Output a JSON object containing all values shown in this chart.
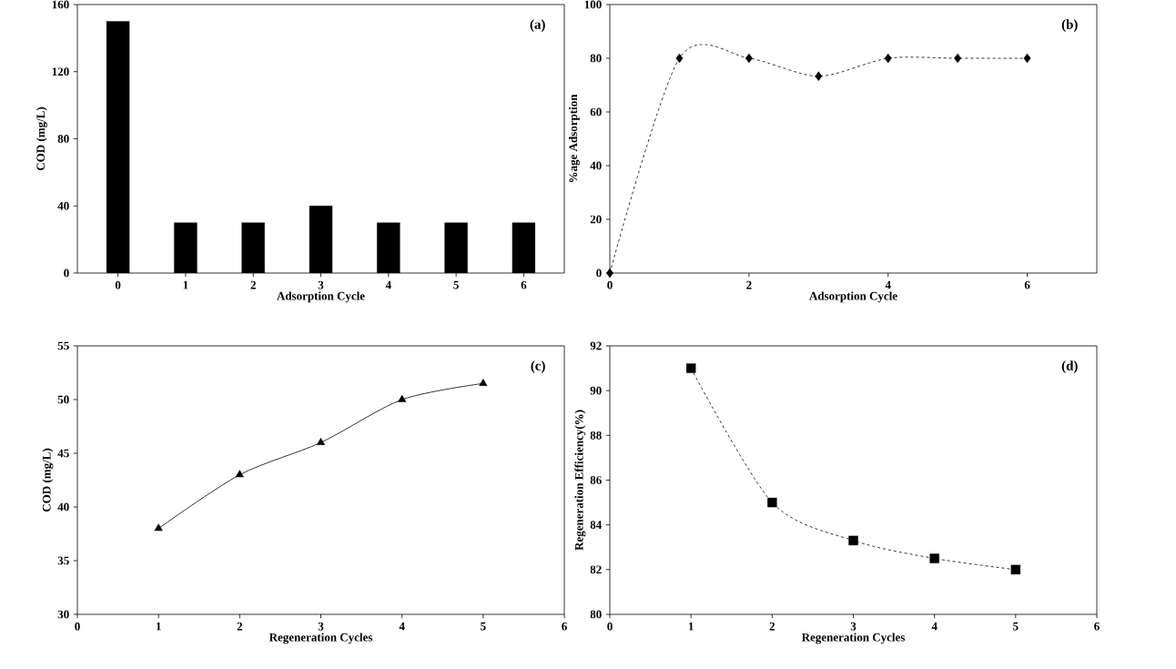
{
  "chart_data": [
    {
      "type": "bar",
      "categories": [
        "0",
        "1",
        "2",
        "3",
        "4",
        "5",
        "6"
      ],
      "values": [
        150,
        30,
        30,
        40,
        30,
        30,
        30
      ],
      "color": "#000000",
      "ylim": [
        0,
        160
      ],
      "yticks": [
        0,
        40,
        80,
        120,
        160
      ],
      "xlabel": "Adsorption Cycle",
      "ylabel": "COD (mg/L)",
      "annotations": [
        "(a)"
      ]
    },
    {
      "type": "line",
      "x": [
        0,
        1,
        2,
        3,
        4,
        5,
        6
      ],
      "values": [
        0,
        80,
        80,
        73.3,
        80,
        80,
        80
      ],
      "color": "#000000",
      "xlim": [
        0,
        7
      ],
      "xticks": [
        0,
        2,
        4,
        6
      ],
      "ylim": [
        0,
        100
      ],
      "yticks": [
        0,
        20,
        40,
        60,
        80,
        100
      ],
      "xlabel": "Adsorption Cycle",
      "ylabel": "%age Adsorption",
      "annotations": [
        "(b)"
      ],
      "marker": "diamond",
      "line_style": "dashed"
    },
    {
      "type": "line",
      "x": [
        1,
        2,
        3,
        4,
        5
      ],
      "values": [
        38,
        43,
        46,
        50,
        51.5
      ],
      "color": "#000000",
      "xlim": [
        0,
        6
      ],
      "xticks": [
        0,
        1,
        2,
        3,
        4,
        5,
        6
      ],
      "ylim": [
        30,
        55
      ],
      "yticks": [
        30,
        35,
        40,
        45,
        50,
        55
      ],
      "xlabel": "Regeneration Cycles",
      "ylabel": "COD (mg/L)",
      "annotations": [
        "(c)"
      ],
      "marker": "triangle",
      "line_style": "solid"
    },
    {
      "type": "line",
      "x": [
        1,
        2,
        3,
        4,
        5
      ],
      "values": [
        91,
        85,
        83.3,
        82.5,
        82
      ],
      "color": "#000000",
      "xlim": [
        0,
        6
      ],
      "xticks": [
        0,
        1,
        2,
        3,
        4,
        5,
        6
      ],
      "ylim": [
        80,
        92
      ],
      "yticks": [
        80,
        82,
        84,
        86,
        88,
        90,
        92
      ],
      "xlabel": "Regeneration Cycles",
      "ylabel": "Regeneration Efficiency(%)",
      "annotations": [
        "(d)"
      ],
      "marker": "square",
      "line_style": "dashed"
    }
  ]
}
